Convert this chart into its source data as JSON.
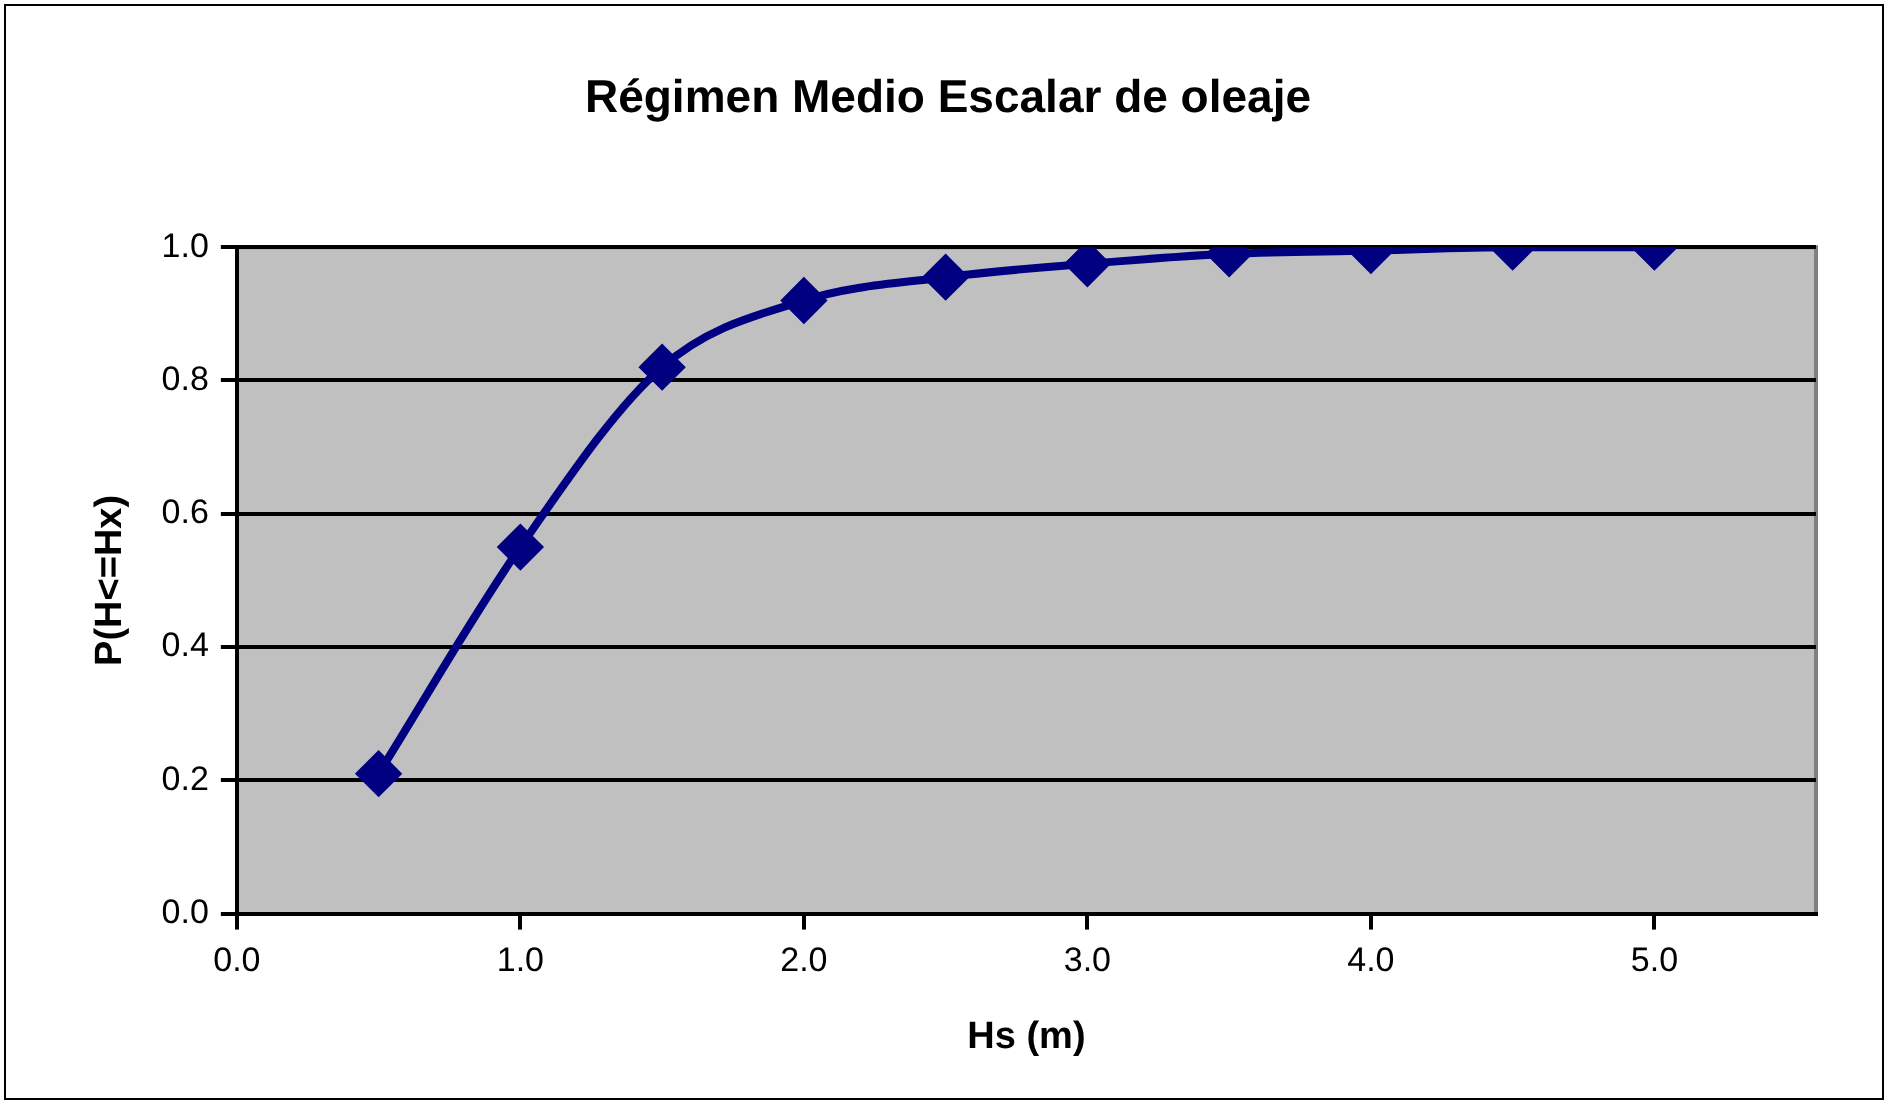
{
  "chart_data": {
    "type": "line",
    "title": "Régimen Medio Escalar de oleaje",
    "xlabel": "Hs (m)",
    "ylabel": "P(H<=Hx)",
    "x": [
      0.5,
      1.0,
      1.5,
      2.0,
      2.5,
      3.0,
      3.5,
      4.0,
      4.5,
      5.0
    ],
    "series": [
      {
        "color": "#000080",
        "values": [
          0.21,
          0.55,
          0.82,
          0.92,
          0.955,
          0.975,
          0.99,
          0.995,
          1.0,
          1.0
        ]
      }
    ],
    "xlim": [
      0,
      5.57
    ],
    "xticks": [
      {
        "value": 0,
        "label": "0.0"
      },
      {
        "value": 1,
        "label": "1.0"
      },
      {
        "value": 2,
        "label": "2.0"
      },
      {
        "value": 3,
        "label": "3.0"
      },
      {
        "value": 4,
        "label": "4.0"
      },
      {
        "value": 5,
        "label": "5.0"
      }
    ],
    "ylim": [
      0,
      1
    ],
    "yticks": [
      {
        "value": 0,
        "label": "0.0"
      },
      {
        "value": 0.2,
        "label": "0.2"
      },
      {
        "value": 0.4,
        "label": "0.4"
      },
      {
        "value": 0.6,
        "label": "0.6"
      },
      {
        "value": 0.8,
        "label": "0.8"
      },
      {
        "value": 1,
        "label": "1.0"
      }
    ],
    "grid": "y",
    "legend": false,
    "marker": "diamond",
    "line_style": "solid"
  }
}
